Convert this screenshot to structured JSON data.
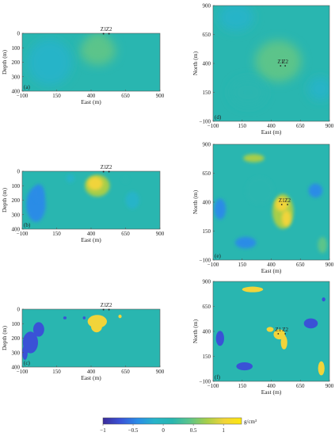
{
  "colors": {
    "background": "#29b6b0",
    "axis": "#555555"
  },
  "colormap": [
    "#3b2c9a",
    "#3a52d6",
    "#2a8ce6",
    "#27b4c8",
    "#29b6b0",
    "#5cc48a",
    "#a7ce4a",
    "#f1d43a",
    "#fde70e"
  ],
  "chart_data": [
    {
      "panel": "a",
      "type": "heatmap",
      "view": "section",
      "xlabel": "East (m)",
      "ylabel": "Depth (m)",
      "xticks": [
        "−100",
        "150",
        "400",
        "650",
        "900"
      ],
      "xlim": [
        -100,
        900
      ],
      "yticks": [
        "0",
        "100",
        "200",
        "300",
        "400"
      ],
      "ylim": [
        0,
        400
      ],
      "markers": [
        {
          "name": "Z1",
          "x": 490,
          "y": 0
        },
        {
          "name": "Z2",
          "x": 530,
          "y": 0
        }
      ],
      "anomalies": [
        {
          "x": 450,
          "y": 120,
          "rx": 130,
          "ry": 100,
          "value": 0.35
        },
        {
          "x": 450,
          "y": 60,
          "rx": 60,
          "ry": 50,
          "value": 0.45
        },
        {
          "x": 100,
          "y": 200,
          "rx": 160,
          "ry": 160,
          "value": -0.1
        }
      ]
    },
    {
      "panel": "b",
      "type": "heatmap",
      "view": "section",
      "xlabel": "East (m)",
      "ylabel": "Depth (m)",
      "xticks": [
        "−100",
        "150",
        "400",
        "650",
        "900"
      ],
      "xlim": [
        -100,
        900
      ],
      "yticks": [
        "0",
        "100",
        "200",
        "300",
        "400"
      ],
      "ylim": [
        0,
        400
      ],
      "markers": [
        {
          "name": "Z1",
          "x": 490,
          "y": 0
        },
        {
          "name": "Z2",
          "x": 530,
          "y": 0
        }
      ],
      "anomalies": [
        {
          "x": 445,
          "y": 100,
          "rx": 90,
          "ry": 75,
          "value": 0.75
        },
        {
          "x": 430,
          "y": 85,
          "rx": 55,
          "ry": 45,
          "value": 1.0
        },
        {
          "x": 0,
          "y": 230,
          "rx": 70,
          "ry": 120,
          "value": -0.45
        },
        {
          "x": 20,
          "y": 150,
          "rx": 40,
          "ry": 60,
          "value": -0.55
        },
        {
          "x": 250,
          "y": 50,
          "rx": 30,
          "ry": 30,
          "value": -0.25
        },
        {
          "x": 650,
          "y": 60,
          "rx": 25,
          "ry": 20,
          "value": 0.25
        },
        {
          "x": 700,
          "y": 200,
          "rx": 50,
          "ry": 60,
          "value": -0.1
        }
      ]
    },
    {
      "panel": "c",
      "type": "heatmap",
      "view": "section",
      "xlabel": "East (m)",
      "ylabel": "Depth (m)",
      "xticks": [
        "−100",
        "150",
        "400",
        "650",
        "900"
      ],
      "xlim": [
        -100,
        900
      ],
      "yticks": [
        "0",
        "100",
        "200",
        "300",
        "400"
      ],
      "ylim": [
        0,
        400
      ],
      "markers": [
        {
          "name": "Z1",
          "x": 490,
          "y": 0
        },
        {
          "name": "Z2",
          "x": 530,
          "y": 0
        }
      ],
      "anomalies": [
        {
          "x": 445,
          "y": 85,
          "rx": 70,
          "ry": 45,
          "value": 1.0
        },
        {
          "x": 440,
          "y": 120,
          "rx": 40,
          "ry": 40,
          "value": 1.0
        },
        {
          "x": 610,
          "y": 50,
          "rx": 12,
          "ry": 12,
          "value": 1.0
        },
        {
          "x": -40,
          "y": 230,
          "rx": 55,
          "ry": 75,
          "value": -0.8
        },
        {
          "x": 20,
          "y": 140,
          "rx": 40,
          "ry": 50,
          "value": -0.8
        },
        {
          "x": -80,
          "y": 300,
          "rx": 20,
          "ry": 50,
          "value": -0.8
        },
        {
          "x": 210,
          "y": 60,
          "rx": 12,
          "ry": 10,
          "value": -0.8
        },
        {
          "x": 350,
          "y": 60,
          "rx": 10,
          "ry": 10,
          "value": -0.8
        }
      ]
    },
    {
      "panel": "d",
      "type": "heatmap",
      "view": "plan",
      "xlabel": "East (m)",
      "ylabel": "North (m)",
      "xticks": [
        "−100",
        "150",
        "400",
        "650",
        "900"
      ],
      "xlim": [
        -100,
        900
      ],
      "yticks": [
        "−100",
        "150",
        "400",
        "650",
        "900"
      ],
      "ylim": [
        -100,
        900
      ],
      "markers": [
        {
          "name": "Z1",
          "x": 480,
          "y": 400
        },
        {
          "name": "Z2",
          "x": 520,
          "y": 400
        }
      ],
      "anomalies": [
        {
          "x": 460,
          "y": 420,
          "rx": 200,
          "ry": 180,
          "value": 0.35
        },
        {
          "x": 470,
          "y": 400,
          "rx": 90,
          "ry": 80,
          "value": 0.45
        },
        {
          "x": 100,
          "y": 800,
          "rx": 150,
          "ry": 120,
          "value": -0.1
        },
        {
          "x": 820,
          "y": 180,
          "rx": 100,
          "ry": 100,
          "value": -0.1
        },
        {
          "x": 200,
          "y": 150,
          "rx": 150,
          "ry": 120,
          "value": 0.15
        }
      ]
    },
    {
      "panel": "e",
      "type": "heatmap",
      "view": "plan",
      "xlabel": "East (m)",
      "ylabel": "North (m)",
      "xticks": [
        "−100",
        "150",
        "400",
        "650",
        "900"
      ],
      "xlim": [
        -100,
        900
      ],
      "yticks": [
        "−100",
        "150",
        "400",
        "650",
        "900"
      ],
      "ylim": [
        -100,
        900
      ],
      "markers": [
        {
          "name": "Z1",
          "x": 490,
          "y": 400
        },
        {
          "name": "Z2",
          "x": 540,
          "y": 400
        }
      ],
      "anomalies": [
        {
          "x": 500,
          "y": 320,
          "rx": 90,
          "ry": 150,
          "value": 0.7
        },
        {
          "x": 490,
          "y": 380,
          "rx": 55,
          "ry": 60,
          "value": 1.0
        },
        {
          "x": 530,
          "y": 260,
          "rx": 40,
          "ry": 70,
          "value": 0.9
        },
        {
          "x": 250,
          "y": 780,
          "rx": 90,
          "ry": 35,
          "value": 0.7
        },
        {
          "x": 780,
          "y": 500,
          "rx": 60,
          "ry": 60,
          "value": -0.45
        },
        {
          "x": -40,
          "y": 340,
          "rx": 50,
          "ry": 90,
          "value": -0.4
        },
        {
          "x": 180,
          "y": 50,
          "rx": 90,
          "ry": 50,
          "value": -0.35
        },
        {
          "x": 840,
          "y": 30,
          "rx": 40,
          "ry": 70,
          "value": 0.4
        },
        {
          "x": 300,
          "y": 500,
          "rx": 120,
          "ry": 120,
          "value": 0.15
        }
      ]
    },
    {
      "panel": "f",
      "type": "heatmap",
      "view": "plan",
      "xlabel": "East (m)",
      "ylabel": "North (m)",
      "xticks": [
        "−100",
        "150",
        "400",
        "650",
        "900"
      ],
      "xlim": [
        -100,
        900
      ],
      "yticks": [
        "−100",
        "150",
        "400",
        "650",
        "900"
      ],
      "ylim": [
        -100,
        900
      ],
      "markers": [
        {
          "name": "Z1",
          "x": 460,
          "y": 400
        },
        {
          "name": "Z2",
          "x": 520,
          "y": 400
        }
      ],
      "anomalies": [
        {
          "x": 470,
          "y": 370,
          "rx": 50,
          "ry": 50,
          "value": 1.0
        },
        {
          "x": 510,
          "y": 290,
          "rx": 28,
          "ry": 70,
          "value": 1.0
        },
        {
          "x": 390,
          "y": 420,
          "rx": 30,
          "ry": 25,
          "value": 1.0
        },
        {
          "x": 240,
          "y": 820,
          "rx": 90,
          "ry": 28,
          "value": 1.0
        },
        {
          "x": 830,
          "y": 30,
          "rx": 28,
          "ry": 70,
          "value": 1.0
        },
        {
          "x": 740,
          "y": 480,
          "rx": 60,
          "ry": 50,
          "value": -0.8
        },
        {
          "x": -40,
          "y": 330,
          "rx": 35,
          "ry": 75,
          "value": -0.8
        },
        {
          "x": 170,
          "y": 50,
          "rx": 70,
          "ry": 40,
          "value": -0.8
        },
        {
          "x": 850,
          "y": 720,
          "rx": 15,
          "ry": 20,
          "value": -0.8
        }
      ]
    }
  ],
  "colorbar": {
    "vmin": -1,
    "vmax": 1.3,
    "ticks": [
      "−1",
      "−0.5",
      "0",
      "0.5",
      "1"
    ],
    "tick_values": [
      -1,
      -0.5,
      0,
      0.5,
      1
    ],
    "unit": "g/cm³"
  }
}
